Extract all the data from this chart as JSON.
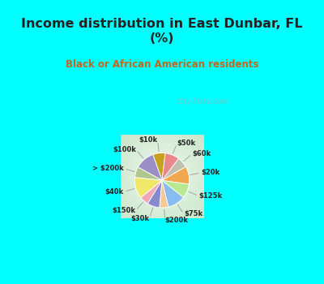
{
  "title": "Income distribution in East Dunbar, FL\n(%)",
  "subtitle": "Black or African American residents",
  "labels": [
    "$10k",
    "$100k",
    "> $200k",
    "$40k",
    "$150k",
    "$30k",
    "$200k",
    "$75k",
    "$125k",
    "$20k",
    "$60k",
    "$50k"
  ],
  "values": [
    7,
    11,
    6,
    12,
    5,
    7,
    5,
    10,
    8,
    10,
    6,
    8
  ],
  "colors": [
    "#c8a020",
    "#9b8ec4",
    "#b0c890",
    "#f0e868",
    "#f0a8b8",
    "#8888cc",
    "#f5c89a",
    "#88bbee",
    "#b8e890",
    "#f0a850",
    "#c0c0b0",
    "#e88888"
  ],
  "bg_cyan": "#00ffff",
  "bg_chart_center": "#e8f8f0",
  "bg_chart_edge": "#c0e8d0",
  "title_color": "#222222",
  "subtitle_color": "#c06820",
  "watermark": "City-Data.com",
  "startangle": 83
}
